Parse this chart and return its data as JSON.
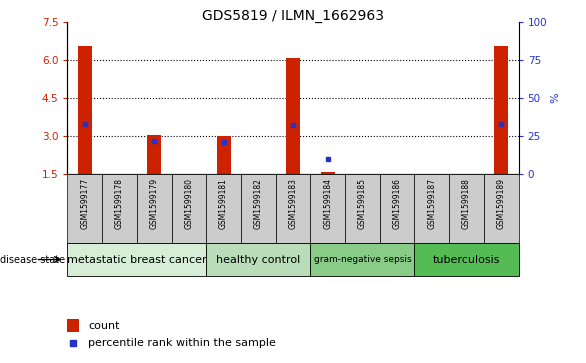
{
  "title": "GDS5819 / ILMN_1662963",
  "samples": [
    "GSM1599177",
    "GSM1599178",
    "GSM1599179",
    "GSM1599180",
    "GSM1599181",
    "GSM1599182",
    "GSM1599183",
    "GSM1599184",
    "GSM1599185",
    "GSM1599186",
    "GSM1599187",
    "GSM1599188",
    "GSM1599189"
  ],
  "counts": [
    6.55,
    1.5,
    3.05,
    1.5,
    3.02,
    1.5,
    6.08,
    1.6,
    1.5,
    1.5,
    1.5,
    1.5,
    6.55
  ],
  "percentile_ranks": [
    33,
    0,
    22,
    0,
    21,
    0,
    32,
    10,
    0,
    0,
    0,
    0,
    33
  ],
  "ylim": [
    1.5,
    7.5
  ],
  "yticks_left": [
    1.5,
    3.0,
    4.5,
    6.0,
    7.5
  ],
  "yticks_right": [
    0,
    25,
    50,
    75,
    100
  ],
  "bar_color": "#cc2200",
  "dot_color": "#2233cc",
  "group_starts": [
    0,
    4,
    7,
    10
  ],
  "group_ends": [
    3,
    6,
    9,
    12
  ],
  "group_labels": [
    "metastatic breast cancer",
    "healthy control",
    "gram-negative sepsis",
    "tuberculosis"
  ],
  "group_colors": [
    "#d6edd6",
    "#b8ddb8",
    "#88cc88",
    "#55bb55"
  ],
  "disease_state_label": "disease state",
  "legend_count_label": "count",
  "legend_percentile_label": "percentile rank within the sample",
  "bar_color_red": "#cc2200",
  "dot_color_blue": "#2233cc",
  "left_axis_color": "#cc2200",
  "right_axis_color": "#2233cc",
  "grid_linestyle": "dotted",
  "grid_values": [
    3.0,
    4.5,
    6.0
  ],
  "sample_box_color": "#cccccc",
  "bar_bottom": 1.5
}
